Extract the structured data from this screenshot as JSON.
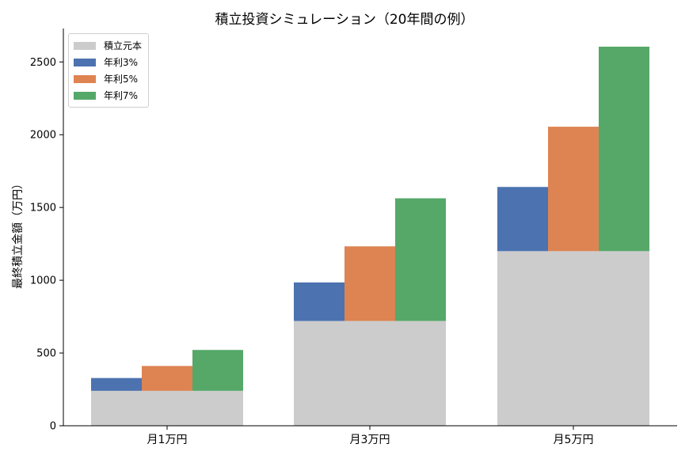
{
  "chart_data": {
    "type": "bar",
    "title": "積立投資シミュレーション（20年間の例）",
    "ylabel": "最終積立金額（万円）",
    "xlabel": "",
    "categories": [
      "月1万円",
      "月3万円",
      "月5万円"
    ],
    "ylim": [
      0,
      2730
    ],
    "yticks": [
      0,
      500,
      1000,
      1500,
      2000,
      2500
    ],
    "base": {
      "name": "積立元本",
      "values": [
        240,
        720,
        1200
      ],
      "color": "#cccccc"
    },
    "series": [
      {
        "name": "年利3%",
        "values": [
          328,
          985,
          1641
        ],
        "color": "#4c72b0"
      },
      {
        "name": "年利5%",
        "values": [
          411,
          1233,
          2055
        ],
        "color": "#dd8452"
      },
      {
        "name": "年利7%",
        "values": [
          521,
          1563,
          2605
        ],
        "color": "#55a868"
      }
    ],
    "legend_position": "top-left",
    "grid": false
  }
}
